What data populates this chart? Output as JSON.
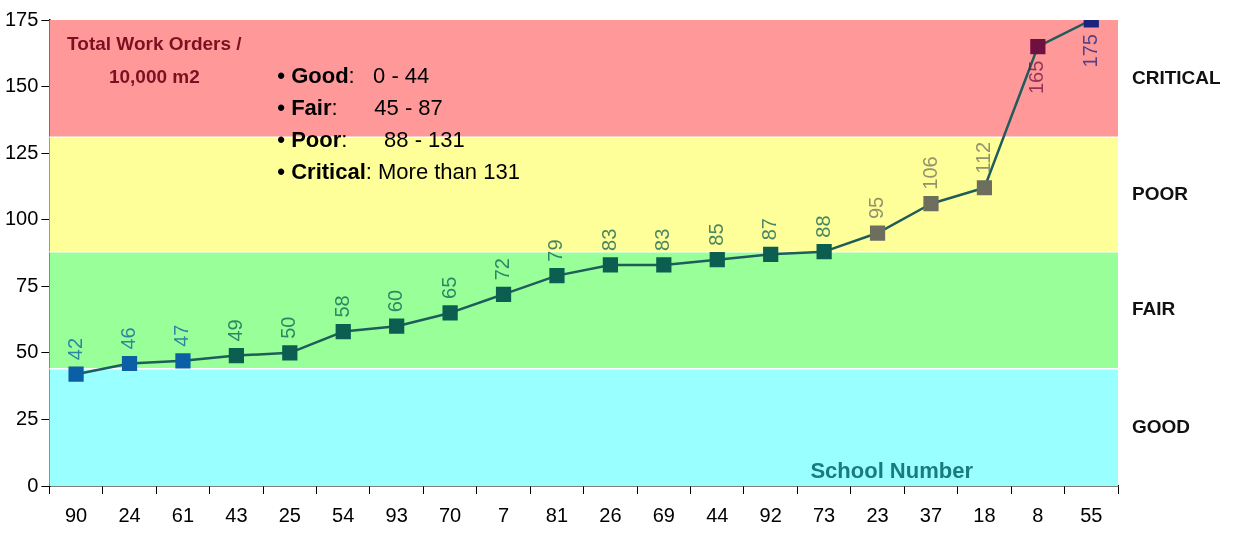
{
  "chart_data": {
    "type": "line",
    "xlabel": "School Number",
    "categories": [
      "90",
      "24",
      "61",
      "43",
      "25",
      "54",
      "93",
      "70",
      "7",
      "81",
      "26",
      "69",
      "44",
      "92",
      "73",
      "23",
      "37",
      "18",
      "8",
      "55"
    ],
    "series": [
      {
        "color": "#1f5c5c",
        "values": [
          42,
          46,
          47,
          49,
          50,
          58,
          60,
          65,
          72,
          79,
          83,
          83,
          85,
          87,
          88,
          95,
          106,
          112,
          165,
          175
        ],
        "colors": [
          "#0b5fa5",
          "#0b5fa5",
          "#0b5fa5",
          "#0b5e50",
          "#0b5e50",
          "#0b5e50",
          "#0b5e50",
          "#0b5e50",
          "#0b5e50",
          "#0b5e50",
          "#0b5e50",
          "#0b5e50",
          "#0b5e50",
          "#0b5e50",
          "#0b5e50",
          "#6e6e5e",
          "#6e6e5e",
          "#6e6e5e",
          "#6e1040",
          "#1a237e"
        ]
      }
    ],
    "ylim": [
      0,
      175
    ],
    "yticks": [
      0,
      25,
      50,
      75,
      100,
      125,
      150,
      175
    ],
    "marker": "square",
    "line_style": "solid",
    "data_labels": true,
    "bands": [
      {
        "axis": "y",
        "from": 0,
        "to": 44,
        "label": "GOOD",
        "color": "#99ffff"
      },
      {
        "axis": "y",
        "from": 44,
        "to": 88,
        "label": "FAIR",
        "color": "#99ff99"
      },
      {
        "axis": "y",
        "from": 88,
        "to": 131,
        "label": "POOR",
        "color": "#ffff99"
      },
      {
        "axis": "y",
        "from": 131,
        "to": 175,
        "label": "CRITICAL",
        "color": "#ff9999"
      }
    ],
    "annotations": [
      "Total Work Orders /\n10,000 m2",
      "• Good:   0 - 44",
      "• Fair:      45 - 87",
      "• Poor:      88 - 131",
      "• Critical: More than 131"
    ]
  }
}
